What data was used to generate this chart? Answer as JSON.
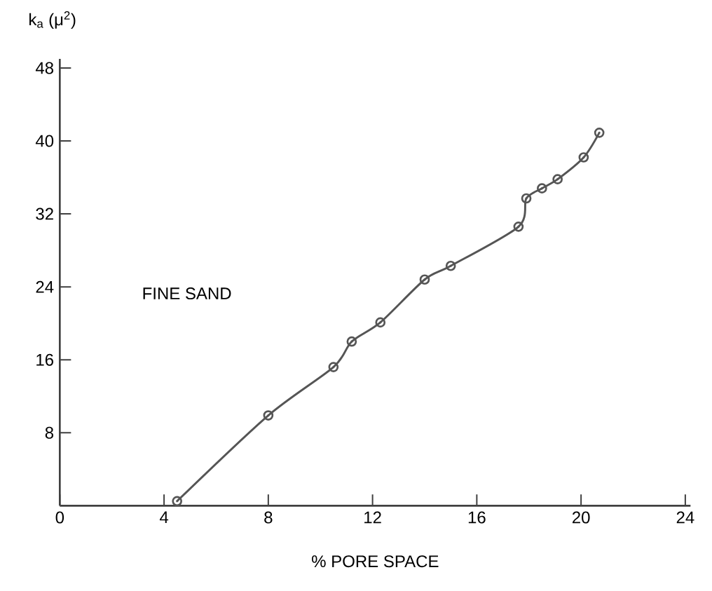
{
  "chart_data": {
    "type": "line",
    "xlabel": "% PORE SPACE",
    "ylabel": "k$_{a}$ (μ$^{2}$)",
    "annotations": [
      "FINE SAND"
    ],
    "x": [
      4.5,
      8.0,
      10.5,
      11.2,
      12.3,
      14.0,
      15.0,
      17.6,
      17.9,
      18.5,
      19.1,
      20.1,
      20.7
    ],
    "series": [
      {
        "color": "#555555",
        "values": [
          0.5,
          9.9,
          15.2,
          18.0,
          20.1,
          24.8,
          26.3,
          30.6,
          33.7,
          34.8,
          35.8,
          38.2,
          40.9
        ]
      }
    ],
    "xlim": [
      0,
      24.2
    ],
    "ylim": [
      0,
      49
    ],
    "xticks": [
      0,
      4,
      8,
      12,
      16,
      20,
      24
    ],
    "yticks": [
      8,
      16,
      24,
      32,
      40,
      48
    ],
    "marker": "circle"
  }
}
